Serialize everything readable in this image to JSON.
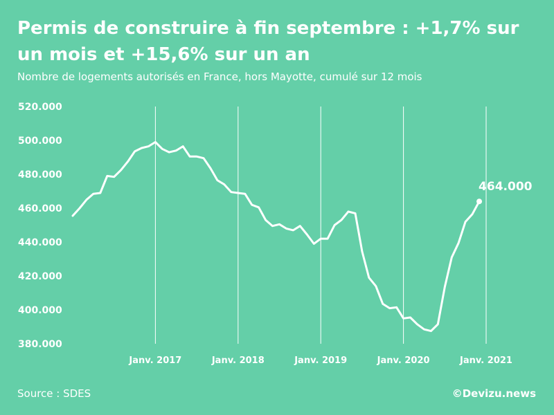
{
  "chart_data": {
    "type": "line",
    "title": "Permis de construire à fin septembre : +1,7% sur un mois et +15,6% sur un an",
    "subtitle": "Nombre de logements autorisés en France, hors Mayotte, cumulé sur 12 mois",
    "y_tick_labels": [
      "520.000",
      "500.000",
      "480.000",
      "460.000",
      "440.000",
      "420.000",
      "400.000",
      "380.000"
    ],
    "y_ticks": [
      520000,
      500000,
      480000,
      460000,
      440000,
      420000,
      400000,
      380000
    ],
    "ylim": [
      380000,
      520000
    ],
    "x_tick_labels": [
      "Janv. 2017",
      "Janv. 2018",
      "Janv. 2019",
      "Janv. 2020",
      "Janv. 2021"
    ],
    "x_tick_months": [
      12,
      24,
      36,
      48,
      60
    ],
    "grid": "vertical lines at January of each year",
    "end_label": "464.000",
    "series": [
      {
        "values": [
          455500,
          460000,
          465000,
          468500,
          469000,
          479000,
          478500,
          482500,
          487500,
          493500,
          495500,
          496500,
          499000,
          495000,
          493000,
          494000,
          496500,
          490500,
          490500,
          489500,
          483500,
          476500,
          474000,
          469500,
          469000,
          468500,
          462000,
          460500,
          453000,
          449500,
          450500,
          448000,
          447000,
          449500,
          444500,
          439000,
          442000,
          442000,
          450000,
          453000,
          458000,
          457000,
          434500,
          419000,
          414000,
          403500,
          401000,
          401500,
          395000,
          395500,
          391500,
          388500,
          387500,
          391500,
          413500,
          431000,
          439500,
          452000,
          456500,
          464000
        ]
      }
    ],
    "colors": {
      "background": "#64cfa8",
      "line": "#ffffff",
      "text": "#ffffff"
    }
  },
  "footer": {
    "source": "Source : SDES",
    "credit": "©Devizu.news"
  }
}
